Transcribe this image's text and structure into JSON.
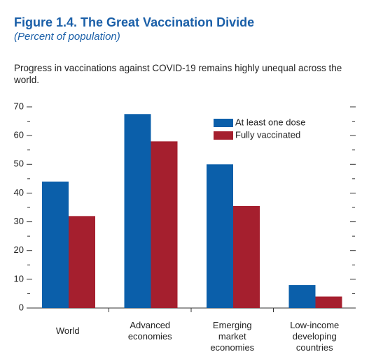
{
  "chart_data": {
    "type": "bar",
    "title": "Figure 1.4.  The Great Vaccination Divide",
    "subtitle": "(Percent of population)",
    "description": "Progress in vaccinations against COVID-19 remains highly unequal across the world.",
    "categories": [
      "World",
      "Advanced economies",
      "Emerging market economies",
      "Low-income developing countries"
    ],
    "series": [
      {
        "name": "At least one dose",
        "color": "#0b5faa",
        "values": [
          44,
          67.5,
          50,
          8
        ]
      },
      {
        "name": "Fully vaccinated",
        "color": "#a51f2e",
        "values": [
          32,
          58,
          35.5,
          4
        ]
      }
    ],
    "ylim": [
      0,
      70
    ],
    "yticks": [
      0,
      10,
      20,
      30,
      40,
      50,
      60,
      70
    ],
    "grid": false,
    "legend": "top-right"
  }
}
